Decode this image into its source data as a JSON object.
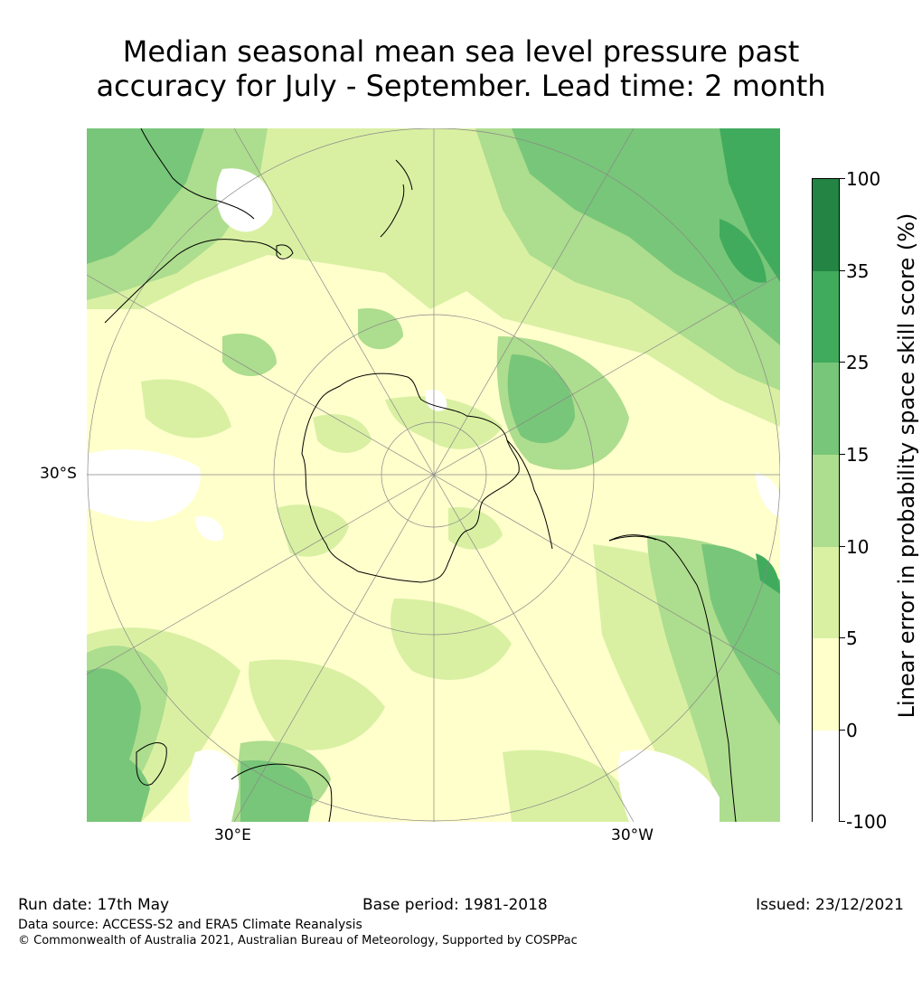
{
  "title": {
    "line1": "Median seasonal mean sea level pressure past",
    "line2": "accuracy for July - September. Lead time: 2 month"
  },
  "map": {
    "labels": {
      "lat_30s": "30°S",
      "lon_30e": "30°E",
      "lon_30w": "30°W"
    },
    "colors": {
      "below_0": "#ffffff",
      "0_5": "#ffffcc",
      "5_10": "#d9f0a3",
      "10_15": "#addd8e",
      "15_25": "#78c679",
      "25_35": "#41ab5d",
      "35_100": "#238443",
      "coastline": "#000000",
      "graticule": "#888888"
    }
  },
  "colorbar": {
    "title": "Linear error in probability space skill score (%)",
    "tick_labels": [
      "100",
      "35",
      "25",
      "15",
      "10",
      "5",
      "0",
      "-100"
    ],
    "bins": [
      {
        "range": "35 to 100",
        "color": "#238443"
      },
      {
        "range": "25 to 35",
        "color": "#41ab5d"
      },
      {
        "range": "15 to 25",
        "color": "#78c679"
      },
      {
        "range": "10 to 15",
        "color": "#addd8e"
      },
      {
        "range": "5 to 10",
        "color": "#d9f0a3"
      },
      {
        "range": "0 to 5",
        "color": "#ffffcc"
      },
      {
        "range": "-100 to 0",
        "color": "#ffffff"
      }
    ]
  },
  "footer": {
    "run_date": "Run date: 17th May",
    "base_period": "Base period: 1981-2018",
    "issued": "Issued: 23/12/2021",
    "data_source": "Data source: ACCESS-S2 and ERA5 Climate Reanalysis",
    "copyright": "© Commonwealth of Australia 2021, Australian Bureau of Meteorology, Supported by COSPPac"
  }
}
